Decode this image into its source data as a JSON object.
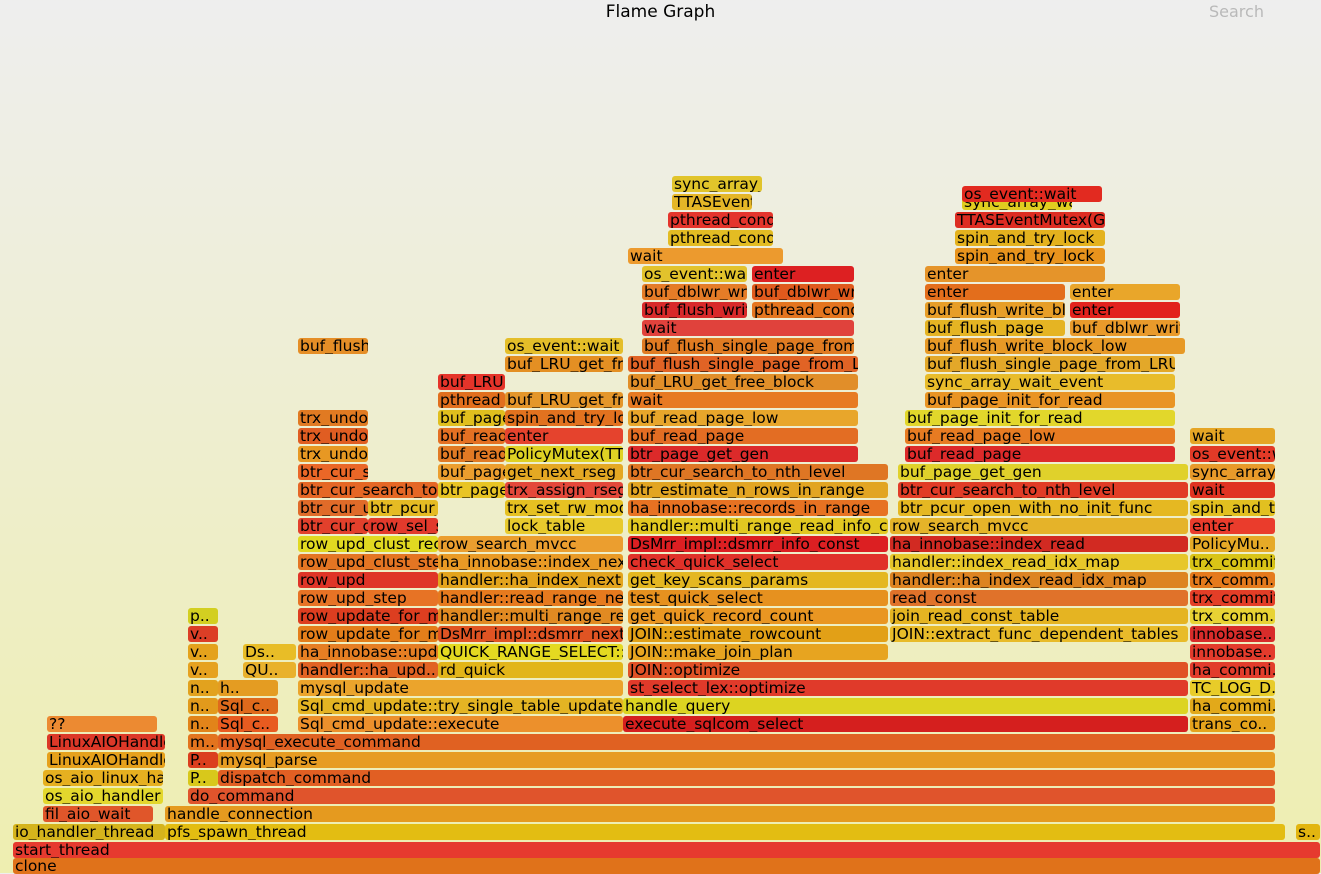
{
  "header": {
    "title": "Flame Graph",
    "search_label": "Search"
  },
  "colors": {
    "background_top": "#eeeeee",
    "background_bottom": "#eeeeb0",
    "search_text": "#b9b9b9"
  },
  "frames": [
    {
      "label": "clone",
      "color": "#e0721a"
    },
    {
      "label": "start_thread",
      "color": "#e63a2f"
    },
    {
      "label": "io_handler_thread",
      "color": "#d5b41c"
    },
    {
      "label": "pfs_spawn_thread",
      "color": "#e3bd12"
    },
    {
      "label": "s..",
      "color": "#e2b510"
    },
    {
      "label": "fil_aio_wait",
      "color": "#e0562a"
    },
    {
      "label": "handle_connection",
      "color": "#e59a1f"
    },
    {
      "label": "os_aio_handler",
      "color": "#e3d72d"
    },
    {
      "label": "do_command",
      "color": "#e0542c"
    },
    {
      "label": "os_aio_linux_handler",
      "color": "#e6b020"
    },
    {
      "label": "P..",
      "color": "#d8c81b"
    },
    {
      "label": "dispatch_command",
      "color": "#e15f23"
    },
    {
      "label": "LinuxAIOHandler::poll",
      "color": "#e6a11c"
    },
    {
      "label": "P..",
      "color": "#db3f1e"
    },
    {
      "label": "mysql_parse",
      "color": "#e79c22"
    },
    {
      "label": "LinuxAIOHandler::collect",
      "color": "#dc3828"
    },
    {
      "label": "m..",
      "color": "#e3741e"
    },
    {
      "label": "mysql_execute_command",
      "color": "#e06122"
    },
    {
      "label": "??",
      "color": "#ec8a32"
    },
    {
      "label": "n..",
      "color": "#e2841a"
    },
    {
      "label": "Sql_c..",
      "color": "#e85b20"
    },
    {
      "label": "Sql_cmd_update::execute",
      "color": "#ec902c"
    },
    {
      "label": "execute_sqlcom_select",
      "color": "#d51f1e"
    },
    {
      "label": "trans_co..",
      "color": "#e5a31c"
    },
    {
      "label": "n..",
      "color": "#e29a1c"
    },
    {
      "label": "Sql_c..",
      "color": "#df6a1c"
    },
    {
      "label": "Sql_cmd_update::try_single_table_update",
      "color": "#e4b423"
    },
    {
      "label": "handle_query",
      "color": "#dcd421"
    },
    {
      "label": "ha_commi..",
      "color": "#e2a91a"
    },
    {
      "label": "n..",
      "color": "#e2a21e"
    },
    {
      "label": "h..",
      "color": "#e49c22"
    },
    {
      "label": "mysql_update",
      "color": "#eba42c"
    },
    {
      "label": "st_select_lex::optimize",
      "color": "#e03a2a"
    },
    {
      "label": "TC_LOG_D..",
      "color": "#e8cc29"
    },
    {
      "label": "v..",
      "color": "#e6a220"
    },
    {
      "label": "QU..",
      "color": "#e9b12c"
    },
    {
      "label": "handler::ha_upd..",
      "color": "#e16323"
    },
    {
      "label": "rd_quick",
      "color": "#e2b519"
    },
    {
      "label": "JOIN::optimize",
      "color": "#e05226"
    },
    {
      "label": "ha_commi..",
      "color": "#e23d2c"
    },
    {
      "label": "v..",
      "color": "#e4a21c"
    },
    {
      "label": "Ds..",
      "color": "#e8bd27"
    },
    {
      "label": "ha_innobase::update_row",
      "color": "#e67e23"
    },
    {
      "label": "QUICK_RANGE_SELECT::get_next",
      "color": "#e4d921"
    },
    {
      "label": "JOIN::make_join_plan",
      "color": "#e7a420"
    },
    {
      "label": "innobase..",
      "color": "#e33b2c"
    },
    {
      "label": "v..",
      "color": "#dc3e26"
    },
    {
      "label": "row_update_for_mysql",
      "color": "#e47e1a"
    },
    {
      "label": "DsMrr_impl::dsmrr_next",
      "color": "#e05423"
    },
    {
      "label": "JOIN::estimate_rowcount",
      "color": "#e2a017"
    },
    {
      "label": "JOIN::extract_func_dependent_tables",
      "color": "#e8bb2a"
    },
    {
      "label": "innobase..",
      "color": "#d82c2a"
    },
    {
      "label": "p..",
      "color": "#d3cf21"
    },
    {
      "label": "row_update_for_mysql_using_upd_graph",
      "color": "#dd3e20"
    },
    {
      "label": "handler::multi_range_read_next",
      "color": "#e18a22"
    },
    {
      "label": "get_quick_record_count",
      "color": "#e99622"
    },
    {
      "label": "join_read_const_table",
      "color": "#e5b422"
    },
    {
      "label": "trx_comm..",
      "color": "#e8d334"
    },
    {
      "label": "row_upd_step",
      "color": "#e77325"
    },
    {
      "label": "handler::read_range_next",
      "color": "#e67a1e"
    },
    {
      "label": "test_quick_select",
      "color": "#e6911f"
    },
    {
      "label": "read_const",
      "color": "#e0722a"
    },
    {
      "label": "trx_commit",
      "color": "#e33e27"
    },
    {
      "label": "row_upd",
      "color": "#df3527"
    },
    {
      "label": "handler::ha_index_next",
      "color": "#e3a41d"
    },
    {
      "label": "get_key_scans_params",
      "color": "#e4b720"
    },
    {
      "label": "handler::ha_index_read_idx_map",
      "color": "#dd8422"
    },
    {
      "label": "trx_comm..",
      "color": "#e57a1c"
    },
    {
      "label": "row_upd_clust_step",
      "color": "#e47523"
    },
    {
      "label": "ha_innobase::index_next",
      "color": "#e99a25"
    },
    {
      "label": "check_quick_select",
      "color": "#e03129"
    },
    {
      "label": "handler::index_read_idx_map",
      "color": "#e7c72a"
    },
    {
      "label": "trx_commit_low",
      "color": "#d9c417"
    },
    {
      "label": "row_upd_clust_rec",
      "color": "#e1d921"
    },
    {
      "label": "row_search_mvcc",
      "color": "#eb9e2f"
    },
    {
      "label": "DsMrr_impl::dsmrr_info_const",
      "color": "#dc1f22"
    },
    {
      "label": "ha_innobase::index_read",
      "color": "#d22a22"
    },
    {
      "label": "PolicyMu..",
      "color": "#e6aa27"
    },
    {
      "label": "btr_cur_optimistic_update",
      "color": "#e2402c"
    },
    {
      "label": "row_sel_store_mysql_rec",
      "color": "#e23a2c"
    },
    {
      "label": "lock_table",
      "color": "#e8ca2d"
    },
    {
      "label": "handler::multi_range_read_info_const",
      "color": "#e2c821"
    },
    {
      "label": "row_search_mvcc",
      "color": "#e5b329"
    },
    {
      "label": "enter",
      "color": "#ea3c2c"
    },
    {
      "label": "btr_cur_upd_lock_and_undo",
      "color": "#e06b29"
    },
    {
      "label": "btr_pcur_move_to_next",
      "color": "#e5bb24"
    },
    {
      "label": "trx_set_rw_mode",
      "color": "#e6c122"
    },
    {
      "label": "ha_innobase::records_in_range",
      "color": "#e77222"
    },
    {
      "label": "btr_pcur_open_with_no_init_func",
      "color": "#e5b822"
    },
    {
      "label": "spin_and_try_lock",
      "color": "#e2c020"
    },
    {
      "label": "btr_cur_search_to_nth_level",
      "color": "#e56725"
    },
    {
      "label": "btr_page_get_next",
      "color": "#e8c424"
    },
    {
      "label": "trx_assign_rseg",
      "color": "#e4483a"
    },
    {
      "label": "btr_estimate_n_rows_in_range",
      "color": "#e2a522"
    },
    {
      "label": "btr_cur_search_to_nth_level",
      "color": "#e13c26"
    },
    {
      "label": "wait",
      "color": "#e03322"
    },
    {
      "label": "btr_cur_search_to_nth_level",
      "color": "#ea6727"
    },
    {
      "label": "buf_page_get_gen",
      "color": "#ec9e2e"
    },
    {
      "label": "get_next_rseg",
      "color": "#e4a823"
    },
    {
      "label": "btr_cur_search_to_nth_level",
      "color": "#df7624"
    },
    {
      "label": "buf_page_get_gen",
      "color": "#e0d12b"
    },
    {
      "label": "sync_array_wait",
      "color": "#e89a2a"
    },
    {
      "label": "trx_undo_report_row_operation",
      "color": "#e79823"
    },
    {
      "label": "buf_read_page",
      "color": "#e17a24"
    },
    {
      "label": "PolicyMutex(TTASEventMutex)",
      "color": "#dfd124"
    },
    {
      "label": "btr_page_get_gen",
      "color": "#dc2a2a"
    },
    {
      "label": "buf_read_page",
      "color": "#dd2a2a"
    },
    {
      "label": "os_event::wait",
      "color": "#e23a27"
    },
    {
      "label": "trx_undo_report_row_operation",
      "color": "#e05d22"
    },
    {
      "label": "buf_read_page_low",
      "color": "#e47023"
    },
    {
      "label": "enter",
      "color": "#e5432d"
    },
    {
      "label": "buf_read_page",
      "color": "#e36d23"
    },
    {
      "label": "buf_read_page_low",
      "color": "#e77b22"
    },
    {
      "label": "wait",
      "color": "#e5a525"
    },
    {
      "label": "trx_undo_assign_undo",
      "color": "#e17a22"
    },
    {
      "label": "buf_page_init_for_read",
      "color": "#e0bf1e"
    },
    {
      "label": "spin_and_try_lock",
      "color": "#e2721f"
    },
    {
      "label": "buf_read_page_low",
      "color": "#e8a62b"
    },
    {
      "label": "buf_page_init_for_read",
      "color": "#e2d72b"
    },
    {
      "label": "pthread_cond_wait",
      "color": "#e16f1e"
    },
    {
      "label": "buf_LRU_get_free_block",
      "color": "#e4962a"
    },
    {
      "label": "wait",
      "color": "#e77a22"
    },
    {
      "label": "buf_page_init_for_read",
      "color": "#e99424"
    },
    {
      "label": "buf_LRU_get_free_block",
      "color": "#e5342a"
    },
    {
      "label": "buf_LRU_get_free_block",
      "color": "#e18e29"
    },
    {
      "label": "sync_array_wait_event",
      "color": "#e8bc2b"
    },
    {
      "label": "buf_LRU_get_free_block",
      "color": "#e48f23"
    },
    {
      "label": "buf_flush_single_page_from_LRU",
      "color": "#e16325"
    },
    {
      "label": "buf_flush_single_page_from_LRU",
      "color": "#e3a829"
    },
    {
      "label": "os_event::wait",
      "color": "#e4be29"
    },
    {
      "label": "buf_flush_single_page_from_LRU",
      "color": "#e07b22"
    },
    {
      "label": "buf_flush_write_block_low",
      "color": "#e79926"
    },
    {
      "label": "buf_flush_page",
      "color": "#e58e27"
    },
    {
      "label": "wait",
      "color": "#e0423c"
    },
    {
      "label": "buf_flush_page",
      "color": "#e5b423"
    },
    {
      "label": "buf_dblwr_write_single_page",
      "color": "#e99a2b"
    },
    {
      "label": "buf_flush_write_block_low",
      "color": "#d82a2a"
    },
    {
      "label": "pthread_cond_wait",
      "color": "#e4751f"
    },
    {
      "label": "buf_flush_write_block_low",
      "color": "#e79e28"
    },
    {
      "label": "enter",
      "color": "#e2221d"
    },
    {
      "label": "buf_dblwr_write_single_page",
      "color": "#e57c27"
    },
    {
      "label": "buf_dblwr_write_single_page",
      "color": "#e05a1d"
    },
    {
      "label": "enter",
      "color": "#e36e1c"
    },
    {
      "label": "enter",
      "color": "#e9a62a"
    },
    {
      "label": "os_event::wait",
      "color": "#e2c22c"
    },
    {
      "label": "enter",
      "color": "#dd2022"
    },
    {
      "label": "enter",
      "color": "#e5942a"
    },
    {
      "label": "wait",
      "color": "#ec9a2e"
    },
    {
      "label": "spin_and_try_lock",
      "color": "#e8931d"
    },
    {
      "label": "pthread_cond_wait",
      "color": "#e3bc23"
    },
    {
      "label": "spin_and_try_lock",
      "color": "#e4b21e"
    },
    {
      "label": "pthread_cond_wait",
      "color": "#e4352c"
    },
    {
      "label": "TTASEventMutex(GenericPolicy)::enter",
      "color": "#dd2d22"
    },
    {
      "label": "TTASEventMutex(GenericPolicy)",
      "color": "#e5b627"
    },
    {
      "label": "sync_array_wait_event",
      "color": "#e0cd20"
    },
    {
      "label": "sync_array_wait_event",
      "color": "#e1c42b"
    },
    {
      "label": "os_event::wait",
      "color": "#e22a20"
    },
    {
      "label": "os_event::wait",
      "color": "#e2c22c"
    },
    {
      "label": "wait",
      "color": "#e7e62c"
    },
    {
      "label": "wait",
      "color": "#e2362a"
    },
    {
      "label": "pthread_cond_wait",
      "color": "#e3e4a9"
    },
    {
      "label": "pthread_con..",
      "color": "#ebe1b0"
    }
  ]
}
